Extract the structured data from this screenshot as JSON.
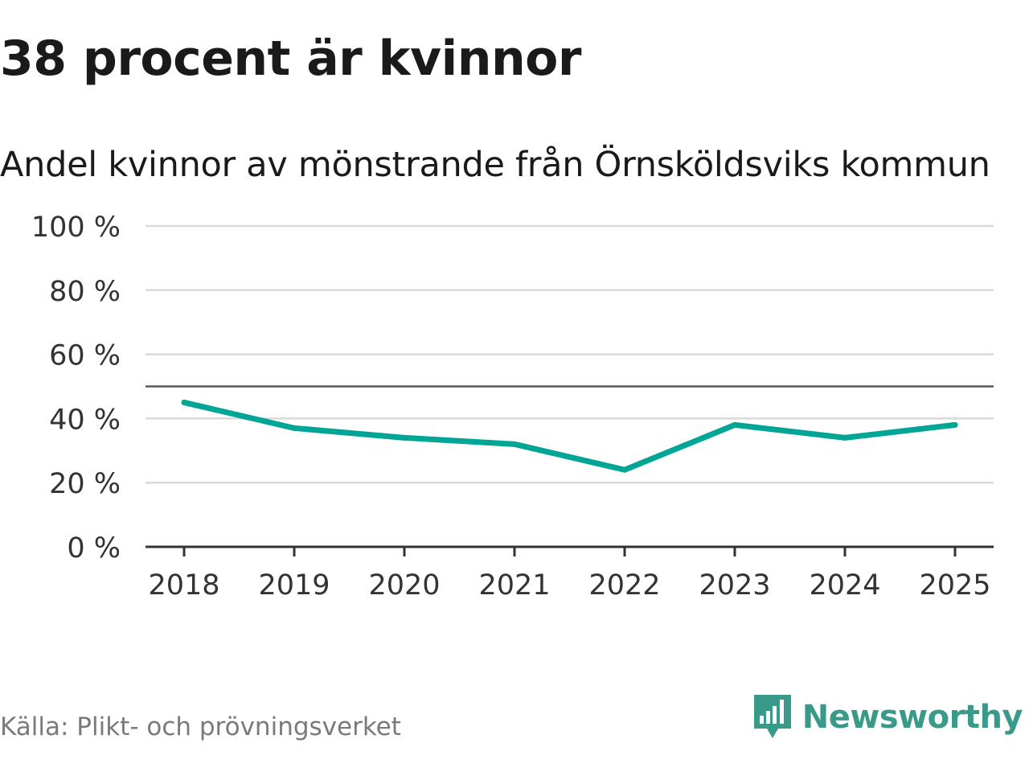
{
  "header": {
    "title": "38 procent är kvinnor"
  },
  "footer": {
    "source": "Källa: Plikt- och prövningsverket",
    "brand": "Newsworthy",
    "logo_icon": "newsworthy-logo-icon"
  },
  "colors": {
    "line": "#00a596",
    "grid": "#d9d9d9",
    "reference": "#55595e",
    "axis": "#333333",
    "text": "#333333",
    "brand": "#3a9a8a"
  },
  "chart_data": {
    "type": "line",
    "title": "Andel kvinnor av mönstrande från Örnsköldsviks kommun",
    "xlabel": "",
    "ylabel": "",
    "ylim": [
      0,
      100
    ],
    "yticks": [
      0,
      20,
      40,
      60,
      80,
      100
    ],
    "ytick_labels": [
      "0 %",
      "20 %",
      "40 %",
      "60 %",
      "80 %",
      "100 %"
    ],
    "reference_line": 50,
    "grid": true,
    "categories": [
      "2018",
      "2019",
      "2020",
      "2021",
      "2022",
      "2023",
      "2024",
      "2025"
    ],
    "series": [
      {
        "name": "Andel kvinnor",
        "values": [
          45,
          37,
          34,
          32,
          24,
          38,
          34,
          38
        ]
      }
    ]
  }
}
